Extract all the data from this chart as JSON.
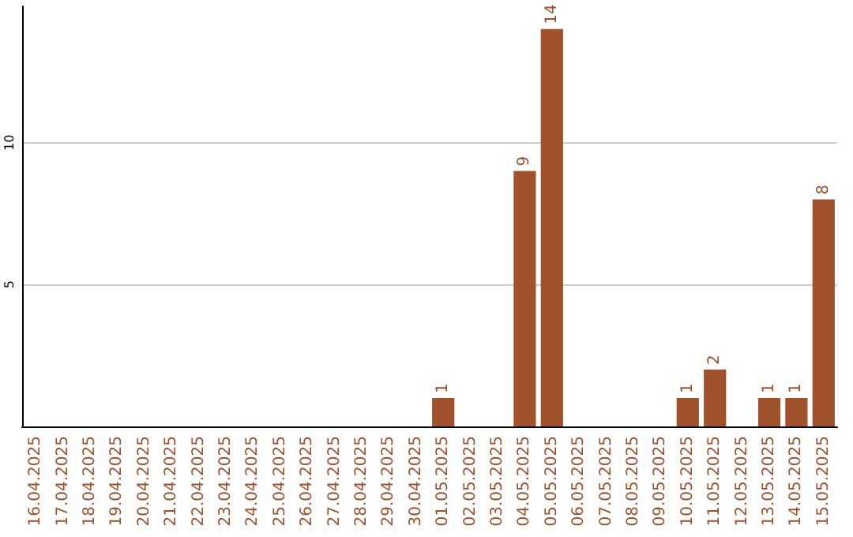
{
  "chart_data": {
    "type": "bar",
    "categories": [
      "16.04.2025",
      "17.04.2025",
      "18.04.2025",
      "19.04.2025",
      "20.04.2025",
      "21.04.2025",
      "22.04.2025",
      "23.04.2025",
      "24.04.2025",
      "25.04.2025",
      "26.04.2025",
      "27.04.2025",
      "28.04.2025",
      "29.04.2025",
      "30.04.2025",
      "01.05.2025",
      "02.05.2025",
      "03.05.2025",
      "04.05.2025",
      "05.05.2025",
      "06.05.2025",
      "07.05.2025",
      "08.05.2025",
      "09.05.2025",
      "10.05.2025",
      "11.05.2025",
      "12.05.2025",
      "13.05.2025",
      "14.05.2025",
      "15.05.2025"
    ],
    "values": [
      0,
      0,
      0,
      0,
      0,
      0,
      0,
      0,
      0,
      0,
      0,
      0,
      0,
      0,
      0,
      1,
      0,
      0,
      9,
      14,
      0,
      0,
      0,
      0,
      1,
      2,
      0,
      1,
      1,
      8
    ],
    "value_labels": [
      null,
      null,
      null,
      null,
      null,
      null,
      null,
      null,
      null,
      null,
      null,
      null,
      null,
      null,
      null,
      "1",
      null,
      null,
      "9",
      "14",
      null,
      null,
      null,
      null,
      "1",
      "2",
      null,
      "1",
      "1",
      "8"
    ],
    "color": "#a0522d",
    "ylim": [
      0,
      14.8
    ],
    "yticks": [
      5,
      10
    ],
    "grid": "y"
  }
}
